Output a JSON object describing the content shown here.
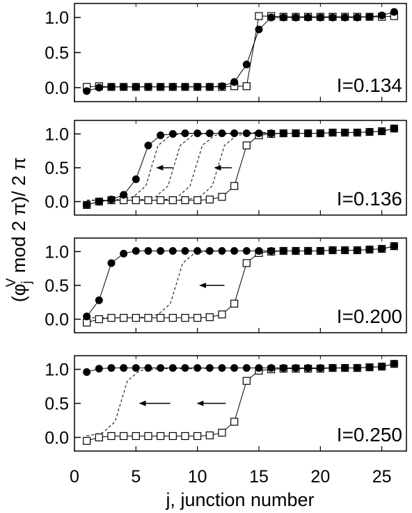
{
  "chart_data": {
    "type": "scatter",
    "xlabel": "j,  junction number",
    "ylabel_main": "(φ",
    "ylabel_sub": "j",
    "ylabel_sup": "V",
    "ylabel_rest": " mod 2 π)/ 2 π",
    "xlim": [
      0,
      27
    ],
    "ylim": [
      -0.2,
      1.2
    ],
    "x_ticks": [
      "0",
      "5",
      "10",
      "15",
      "20",
      "25"
    ],
    "y_ticks": [
      "0.0",
      "0.5",
      "1.0"
    ],
    "grid": false,
    "panels": [
      {
        "label": "I=0.134",
        "filled": [
          -0.05,
          0.0,
          0.01,
          0.01,
          0.01,
          0.01,
          0.01,
          0.01,
          0.01,
          0.01,
          0.01,
          0.02,
          0.08,
          0.33,
          0.83,
          1.0,
          1.0,
          1.0,
          1.0,
          1.0,
          1.0,
          1.0,
          1.0,
          1.01,
          1.03,
          1.08
        ],
        "open": [
          0.01,
          0.02,
          0.01,
          0.01,
          0.01,
          0.01,
          0.01,
          0.01,
          0.01,
          0.01,
          0.01,
          0.01,
          0.02,
          0.02,
          1.02,
          1.02,
          1.01,
          1.01,
          1.01,
          1.01,
          1.01,
          1.01,
          1.01,
          1.01,
          1.01,
          1.02
        ],
        "dashed": [],
        "arrows": []
      },
      {
        "label": "I=0.136",
        "filled": [
          -0.05,
          0.0,
          0.03,
          0.1,
          0.33,
          0.83,
          0.98,
          1.0,
          1.01,
          1.01,
          1.01,
          1.01,
          1.01,
          1.01,
          1.01,
          1.01,
          1.01,
          1.01,
          1.01,
          1.01,
          1.02,
          1.02,
          1.02,
          1.03,
          1.04,
          1.08
        ],
        "open": [
          -0.05,
          0.0,
          0.02,
          0.02,
          0.02,
          0.02,
          0.02,
          0.02,
          0.02,
          0.02,
          0.03,
          0.07,
          0.23,
          0.83,
          0.98,
          1.0,
          1.01,
          1.01,
          1.01,
          1.01,
          1.02,
          1.02,
          1.02,
          1.03,
          1.04,
          1.08
        ],
        "dashed": [
          {
            "shift": 1.8,
            "x_end": 16
          },
          {
            "shift": 3.6,
            "x_end": 16
          },
          {
            "shift": 5.4,
            "x_end": 16
          },
          {
            "shift": 7.2,
            "x_end": 16
          }
        ],
        "arrows": [
          {
            "x_start": 8.0,
            "x_end": 6.7,
            "y": 0.5
          },
          {
            "x_start": 12.8,
            "x_end": 11.4,
            "y": 0.5
          }
        ]
      },
      {
        "label": "I=0.200",
        "filled": [
          0.04,
          0.28,
          0.83,
          0.97,
          1.01,
          1.01,
          1.01,
          1.01,
          1.01,
          1.01,
          1.01,
          1.01,
          1.01,
          1.01,
          1.01,
          1.01,
          1.01,
          1.01,
          1.01,
          1.01,
          1.02,
          1.02,
          1.02,
          1.03,
          1.04,
          1.08
        ],
        "open": [
          -0.05,
          0.0,
          0.02,
          0.02,
          0.02,
          0.02,
          0.02,
          0.02,
          0.02,
          0.02,
          0.03,
          0.07,
          0.23,
          0.83,
          0.98,
          1.0,
          1.01,
          1.01,
          1.01,
          1.01,
          1.02,
          1.02,
          1.02,
          1.03,
          1.04,
          1.08
        ],
        "dashed": [
          {
            "shift": 5.2,
            "x_end": 14
          }
        ],
        "arrows": [
          {
            "x_start": 12.2,
            "x_end": 10.2,
            "y": 0.5
          }
        ]
      },
      {
        "label": "I=0.250",
        "filled": [
          0.96,
          1.01,
          1.02,
          1.02,
          1.02,
          1.02,
          1.02,
          1.02,
          1.02,
          1.02,
          1.02,
          1.02,
          1.02,
          1.02,
          1.02,
          1.02,
          1.02,
          1.02,
          1.02,
          1.02,
          1.02,
          1.02,
          1.02,
          1.03,
          1.04,
          1.08
        ],
        "open": [
          -0.05,
          0.0,
          0.02,
          0.02,
          0.02,
          0.02,
          0.02,
          0.02,
          0.02,
          0.02,
          0.03,
          0.07,
          0.23,
          0.83,
          0.98,
          1.0,
          1.01,
          1.01,
          1.01,
          1.01,
          1.02,
          1.02,
          1.02,
          1.03,
          1.04,
          1.08
        ],
        "dashed": [
          {
            "shift": 9.7,
            "x_end": 14
          }
        ],
        "arrows": [
          {
            "x_start": 7.8,
            "x_end": 5.3,
            "y": 0.5
          },
          {
            "x_start": 12.3,
            "x_end": 10.0,
            "y": 0.5
          }
        ]
      }
    ]
  }
}
